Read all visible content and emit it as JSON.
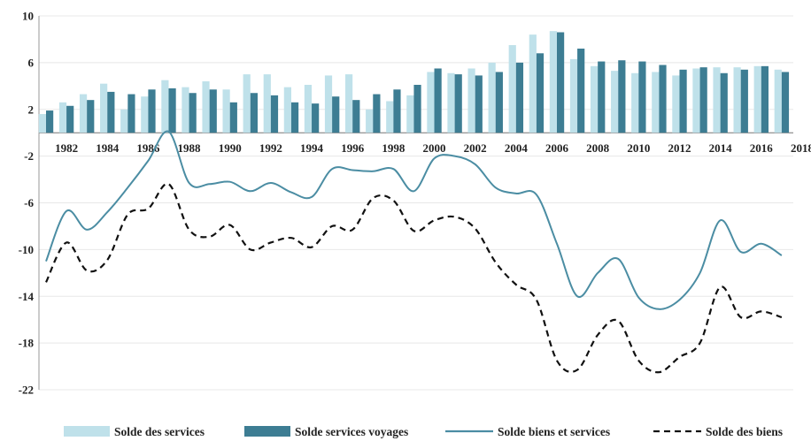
{
  "chart_data": {
    "type": "bar",
    "ylim": [
      -22,
      10
    ],
    "y_ticks": [
      10,
      6,
      2,
      -2,
      -6,
      -10,
      -14,
      -18,
      -22
    ],
    "x_tick_labels": [
      "1982",
      "1984",
      "1986",
      "1988",
      "1990",
      "1992",
      "1994",
      "1996",
      "1998",
      "2000",
      "2002",
      "2004",
      "2006",
      "2008",
      "2010",
      "2012",
      "2014",
      "2016",
      "2018"
    ],
    "grid": true,
    "legend_position": "bottom",
    "years": [
      1981,
      1982,
      1983,
      1984,
      1985,
      1986,
      1987,
      1988,
      1989,
      1990,
      1991,
      1992,
      1993,
      1994,
      1995,
      1996,
      1997,
      1998,
      1999,
      2000,
      2001,
      2002,
      2003,
      2004,
      2005,
      2006,
      2007,
      2008,
      2009,
      2010,
      2011,
      2012,
      2013,
      2014,
      2015,
      2016,
      2017
    ],
    "series": [
      {
        "name": "Solde des services",
        "kind": "bar",
        "color": "#bfe1ea",
        "values": [
          1.6,
          2.6,
          3.3,
          4.2,
          2.0,
          3.1,
          4.5,
          3.9,
          4.4,
          3.7,
          5.0,
          5.0,
          3.9,
          4.1,
          4.9,
          5.0,
          2.0,
          2.7,
          3.2,
          5.2,
          5.1,
          5.5,
          6.0,
          7.5,
          8.4,
          8.7,
          6.3,
          5.7,
          5.3,
          5.1,
          5.2,
          4.9,
          5.5,
          5.6,
          5.6,
          5.7,
          5.4
        ]
      },
      {
        "name": "Solde services voyages",
        "kind": "bar",
        "color": "#3d7d93",
        "values": [
          1.9,
          2.3,
          2.8,
          3.5,
          3.3,
          3.7,
          3.8,
          3.4,
          3.7,
          2.6,
          3.4,
          3.2,
          2.6,
          2.5,
          3.1,
          2.8,
          3.3,
          3.7,
          4.1,
          5.5,
          5.0,
          4.9,
          5.2,
          6.0,
          6.8,
          8.6,
          7.2,
          6.1,
          6.2,
          6.1,
          5.8,
          5.4,
          5.6,
          5.1,
          5.4,
          5.7,
          5.2
        ]
      },
      {
        "name": "Solde biens et services",
        "kind": "line",
        "color": "#4b8da3",
        "values": [
          -11.0,
          -6.7,
          -8.3,
          -6.8,
          -4.7,
          -2.4,
          0.1,
          -4.3,
          -4.4,
          -4.2,
          -5.0,
          -4.3,
          -5.1,
          -5.5,
          -3.1,
          -3.2,
          -3.3,
          -3.1,
          -5.0,
          -2.2,
          -2.0,
          -2.7,
          -4.7,
          -5.2,
          -5.3,
          -9.5,
          -14.0,
          -12.0,
          -10.8,
          -14.1,
          -15.1,
          -14.3,
          -12.0,
          -7.5,
          -10.2,
          -9.5,
          -10.5
        ]
      },
      {
        "name": "Solde des biens",
        "kind": "line",
        "dashed": true,
        "color": "#111111",
        "values": [
          -12.8,
          -9.4,
          -11.8,
          -10.9,
          -7.0,
          -6.5,
          -4.4,
          -8.3,
          -8.9,
          -7.9,
          -10.0,
          -9.4,
          -9.0,
          -9.8,
          -8.0,
          -8.3,
          -5.6,
          -5.8,
          -8.4,
          -7.5,
          -7.2,
          -8.2,
          -11.1,
          -13.0,
          -14.3,
          -19.5,
          -20.3,
          -17.3,
          -16.1,
          -19.5,
          -20.5,
          -19.2,
          -18.0,
          -13.2,
          -15.8,
          -15.3,
          -15.8
        ]
      }
    ]
  }
}
